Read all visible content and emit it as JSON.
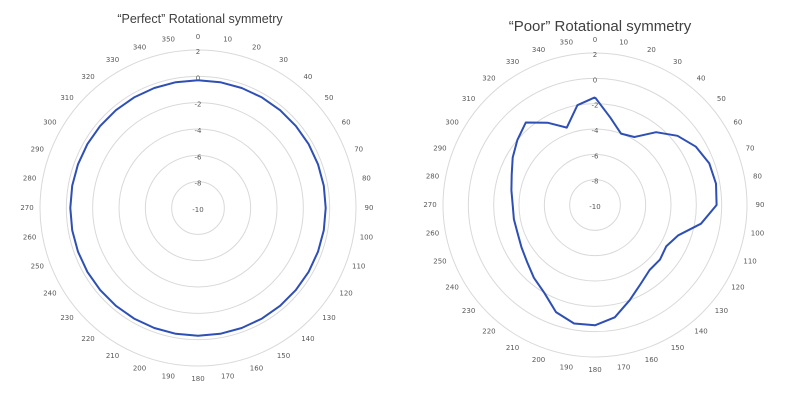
{
  "chart_data": [
    {
      "type": "radar",
      "title": "“Perfect” Rotational symmetry",
      "angles": [
        0,
        10,
        20,
        30,
        40,
        50,
        60,
        70,
        80,
        90,
        100,
        110,
        120,
        130,
        140,
        150,
        160,
        170,
        180,
        190,
        200,
        210,
        220,
        230,
        240,
        250,
        260,
        270,
        280,
        290,
        300,
        310,
        320,
        330,
        340,
        350
      ],
      "r_ticks": [
        2,
        0,
        -2,
        -4,
        -6,
        -8,
        -10
      ],
      "rlim": [
        -10,
        2
      ],
      "grid": true,
      "series": [
        {
          "color": "#2e4fb3",
          "values": [
            -0.3,
            -0.3,
            -0.3,
            -0.3,
            -0.3,
            -0.3,
            -0.3,
            -0.3,
            -0.3,
            -0.3,
            -0.3,
            -0.3,
            -0.3,
            -0.3,
            -0.3,
            -0.3,
            -0.3,
            -0.3,
            -0.3,
            -0.3,
            -0.3,
            -0.3,
            -0.3,
            -0.3,
            -0.3,
            -0.3,
            -0.3,
            -0.3,
            -0.3,
            -0.3,
            -0.3,
            -0.3,
            -0.3,
            -0.3,
            -0.3,
            -0.3
          ]
        }
      ]
    },
    {
      "type": "radar",
      "title": "“Poor” Rotational symmetry",
      "angles": [
        0,
        10,
        20,
        30,
        40,
        50,
        60,
        70,
        80,
        90,
        100,
        110,
        120,
        130,
        140,
        150,
        160,
        170,
        180,
        190,
        200,
        210,
        220,
        230,
        240,
        250,
        260,
        270,
        280,
        290,
        300,
        310,
        320,
        330,
        340,
        350
      ],
      "r_ticks": [
        2,
        0,
        -2,
        -4,
        -6,
        -8,
        -10
      ],
      "rlim": [
        -10,
        2
      ],
      "grid": true,
      "series": [
        {
          "color": "#2e4fb3",
          "values": [
            -1.5,
            -3.0,
            -4.0,
            -3.8,
            -2.5,
            -1.5,
            -0.8,
            -0.4,
            -0.3,
            -0.4,
            -1.5,
            -3.0,
            -3.5,
            -3.3,
            -3.3,
            -2.8,
            -2.0,
            -1.0,
            -0.5,
            -0.5,
            -1.0,
            -2.0,
            -2.5,
            -3.0,
            -3.3,
            -3.5,
            -3.5,
            -3.5,
            -3.3,
            -3.0,
            -2.5,
            -2.0,
            -1.5,
            -2.5,
            -3.5,
            -2.0
          ]
        }
      ]
    }
  ]
}
